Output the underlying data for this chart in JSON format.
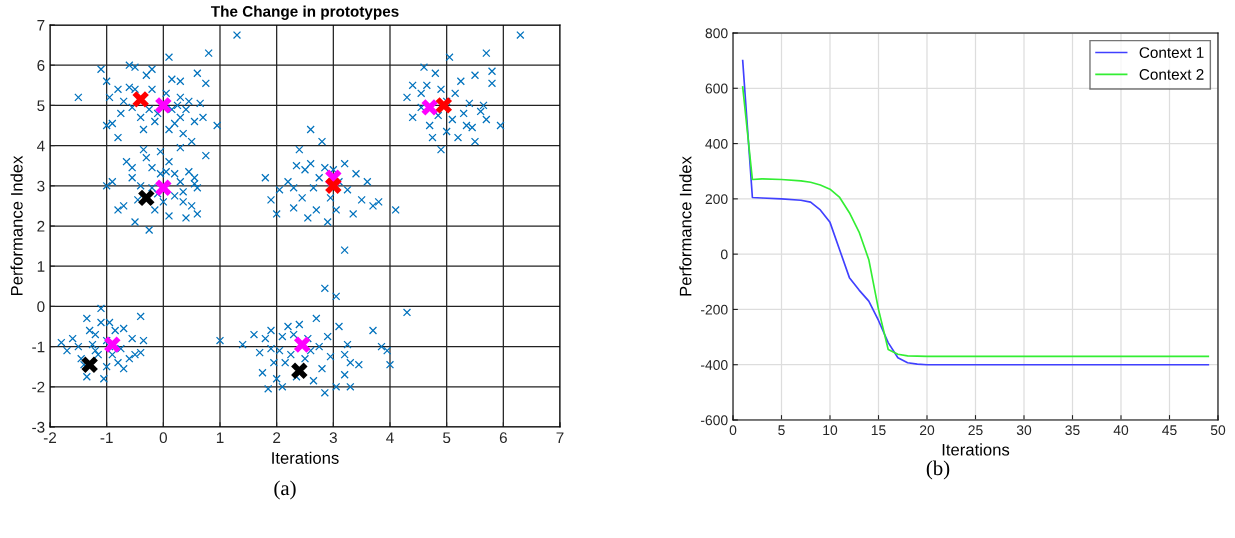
{
  "chart_data": [
    {
      "type": "scatter",
      "title": "The Change in prototypes",
      "xlabel": "Iterations",
      "ylabel": "Performance Index",
      "xlim": [
        -2,
        7
      ],
      "ylim": [
        -3,
        7
      ],
      "xticks": [
        -2,
        -1,
        0,
        1,
        2,
        3,
        4,
        5,
        6,
        7
      ],
      "yticks": [
        -3,
        -2,
        -1,
        0,
        1,
        2,
        3,
        4,
        5,
        6,
        7
      ],
      "grid": true,
      "legend": false,
      "marker": "cross",
      "annotations": [
        "(a)"
      ],
      "series": [
        {
          "color": "#0072bd",
          "x": [
            -1.5,
            -1.1,
            -1.0,
            -0.95,
            -1.0,
            -0.9,
            -0.8,
            -0.75,
            -0.8,
            -0.6,
            -0.6,
            -0.5,
            -0.5,
            -0.55,
            -0.4,
            -0.3,
            -0.2,
            -0.2,
            -0.25,
            -0.15,
            -0.1,
            0.05,
            0.1,
            0.1,
            0.15,
            0.15,
            0.3,
            0.3,
            0.3,
            0.35,
            0.4,
            0.45,
            0.5,
            0.55,
            0.6,
            0.65,
            0.7,
            0.75,
            0.8,
            0.95,
            1.3,
            -0.35,
            0.2,
            -0.7,
            0.25,
            -1.0,
            -0.9,
            -0.8,
            -0.7,
            -0.65,
            -0.55,
            -0.55,
            -0.5,
            -0.45,
            -0.4,
            -0.35,
            -0.3,
            -0.2,
            -0.2,
            -0.25,
            -0.15,
            -0.05,
            -0.05,
            0.0,
            0.05,
            0.1,
            0.1,
            0.2,
            0.2,
            0.3,
            0.3,
            0.35,
            0.4,
            0.45,
            0.5,
            0.55,
            0.6,
            0.6,
            0.55,
            0.75,
            0.35,
            -0.1,
            -1.8,
            -1.7,
            -1.6,
            -1.5,
            -1.45,
            -1.4,
            -1.35,
            -1.35,
            -1.3,
            -1.25,
            -1.2,
            -1.15,
            -1.1,
            -1.1,
            -1.05,
            -1.0,
            -1.0,
            -0.95,
            -0.9,
            -0.85,
            -0.8,
            -0.75,
            -0.7,
            -0.7,
            -0.6,
            -0.55,
            -0.5,
            -0.4,
            -0.4,
            -0.35,
            -1.2,
            -0.95,
            1.0,
            1.4,
            1.6,
            1.7,
            1.75,
            1.8,
            1.85,
            1.9,
            1.9,
            1.95,
            2.0,
            2.05,
            2.1,
            2.1,
            2.15,
            2.2,
            2.25,
            2.3,
            2.35,
            2.4,
            2.5,
            2.55,
            2.6,
            2.65,
            2.7,
            2.75,
            2.8,
            2.85,
            2.85,
            2.9,
            2.95,
            3.05,
            3.05,
            3.1,
            3.2,
            3.2,
            3.25,
            3.3,
            3.3,
            3.45,
            3.7,
            3.85,
            3.95,
            4.0,
            4.3,
            1.8,
            1.9,
            2.0,
            2.05,
            2.2,
            2.3,
            2.35,
            2.4,
            2.45,
            2.5,
            2.55,
            2.6,
            2.65,
            2.7,
            2.75,
            2.8,
            2.85,
            2.9,
            2.95,
            3.0,
            3.05,
            3.1,
            3.2,
            3.2,
            3.25,
            3.35,
            3.4,
            3.5,
            3.6,
            3.7,
            3.8,
            4.1,
            2.6,
            2.3,
            4.3,
            4.4,
            4.55,
            4.6,
            4.65,
            4.7,
            4.75,
            4.8,
            4.85,
            4.9,
            4.9,
            5.0,
            5.0,
            5.05,
            5.1,
            5.15,
            5.2,
            5.25,
            5.3,
            5.35,
            5.4,
            5.45,
            5.5,
            5.5,
            5.6,
            5.65,
            5.7,
            5.8,
            5.8,
            5.95,
            6.3,
            5.7,
            4.4,
            4.55
          ],
          "values": [
            5.2,
            5.9,
            5.6,
            5.2,
            4.5,
            4.55,
            4.2,
            4.8,
            5.4,
            5.45,
            6.0,
            5.95,
            5.4,
            4.95,
            4.7,
            5.75,
            5.9,
            5.4,
            4.9,
            4.6,
            4.8,
            5.3,
            6.2,
            4.4,
            4.9,
            5.65,
            5.6,
            5.2,
            4.7,
            4.3,
            4.9,
            5.1,
            4.1,
            4.6,
            5.8,
            5.05,
            4.7,
            5.55,
            6.3,
            4.5,
            6.75,
            4.4,
            4.55,
            5.1,
            5.0,
            3.0,
            3.1,
            2.4,
            2.5,
            3.6,
            3.45,
            3.2,
            2.1,
            2.65,
            3.0,
            3.9,
            3.7,
            3.45,
            2.95,
            1.9,
            2.4,
            3.85,
            3.3,
            2.6,
            3.35,
            3.6,
            2.25,
            3.3,
            2.75,
            3.95,
            3.1,
            2.85,
            2.2,
            3.35,
            2.5,
            3.05,
            2.95,
            2.3,
            3.2,
            3.75,
            2.6,
            2.8,
            -0.9,
            -1.1,
            -0.8,
            -1.0,
            -1.3,
            -1.45,
            -0.3,
            -1.75,
            -0.6,
            -0.95,
            -0.7,
            -1.2,
            -0.05,
            -0.4,
            -1.8,
            -0.85,
            -1.5,
            -0.4,
            -1.2,
            -0.6,
            -1.4,
            -1.05,
            -0.55,
            -1.55,
            -1.3,
            -0.8,
            -1.2,
            -0.25,
            -1.15,
            -0.85,
            -1.1,
            -1.0,
            -0.85,
            -0.95,
            -0.7,
            -1.15,
            -1.65,
            -0.8,
            -2.05,
            -1.05,
            -0.6,
            -1.4,
            -1.8,
            -1.1,
            -0.75,
            -2.0,
            -1.4,
            -0.5,
            -1.2,
            -0.7,
            -1.75,
            -0.45,
            -1.3,
            -0.8,
            -1.1,
            -1.85,
            -0.3,
            -1.0,
            -1.55,
            0.45,
            -2.15,
            -0.75,
            -1.25,
            0.25,
            -2.0,
            -0.5,
            -1.2,
            -1.7,
            -0.95,
            -1.4,
            -2.0,
            -1.45,
            -0.6,
            -1.0,
            -1.1,
            -1.45,
            -0.15,
            3.2,
            2.65,
            2.3,
            2.9,
            3.1,
            2.45,
            3.5,
            3.9,
            2.7,
            3.4,
            2.2,
            3.55,
            2.95,
            2.4,
            3.2,
            4.1,
            3.45,
            2.1,
            2.7,
            3.4,
            2.4,
            3.1,
            3.55,
            1.4,
            2.9,
            2.3,
            3.3,
            2.65,
            3.1,
            2.5,
            2.6,
            2.4,
            4.4,
            2.95,
            5.2,
            5.5,
            5.3,
            5.95,
            5.5,
            4.5,
            4.2,
            5.8,
            4.75,
            5.4,
            3.9,
            5.1,
            4.35,
            6.2,
            4.65,
            5.3,
            4.2,
            5.6,
            4.8,
            4.5,
            5.05,
            4.45,
            5.75,
            4.1,
            4.85,
            5.0,
            4.65,
            5.85,
            5.55,
            4.5,
            6.75,
            6.3,
            4.7,
            4.95
          ]
        },
        {
          "color": "#ff00ff",
          "x": [
            0.0,
            0.0,
            -0.9,
            2.45,
            3.0,
            4.7
          ],
          "values": [
            5.0,
            2.95,
            -0.95,
            -0.95,
            3.2,
            4.95
          ]
        },
        {
          "color": "#ff0000",
          "x": [
            -0.4,
            3.0,
            4.95
          ],
          "values": [
            5.15,
            3.0,
            5.0
          ]
        },
        {
          "color": "#000000",
          "x": [
            -0.3,
            -1.3,
            2.4
          ],
          "values": [
            2.7,
            -1.45,
            -1.6
          ]
        }
      ]
    },
    {
      "type": "line",
      "xlabel": "Iterations",
      "ylabel": "Performance Index",
      "xlim": [
        0,
        50
      ],
      "ylim": [
        -600,
        800
      ],
      "xticks": [
        0,
        5,
        10,
        15,
        20,
        25,
        30,
        35,
        40,
        45,
        50
      ],
      "yticks": [
        -600,
        -400,
        -200,
        0,
        200,
        400,
        600,
        800
      ],
      "grid": true,
      "legend": "top right",
      "marker": "none",
      "line_style": "solid",
      "annotations": [
        "(b)"
      ],
      "series": [
        {
          "name": "Context 1",
          "color": "#4040ff",
          "x": [
            1,
            2,
            3,
            5,
            7,
            8,
            9,
            10,
            11,
            12,
            13,
            14,
            15,
            16,
            17,
            18,
            19,
            20,
            49
          ],
          "values": [
            700,
            205,
            203,
            200,
            195,
            188,
            160,
            115,
            15,
            -85,
            -130,
            -170,
            -240,
            -320,
            -375,
            -393,
            -398,
            -400,
            -400
          ]
        },
        {
          "name": "Context 2",
          "color": "#33ee33",
          "x": [
            1,
            2,
            3,
            5,
            7,
            8,
            9,
            10,
            11,
            12,
            13,
            14,
            15,
            16,
            17,
            18,
            20,
            49
          ],
          "values": [
            605,
            270,
            272,
            270,
            265,
            260,
            250,
            235,
            205,
            150,
            80,
            -20,
            -200,
            -345,
            -362,
            -368,
            -370,
            -370
          ]
        }
      ]
    }
  ]
}
